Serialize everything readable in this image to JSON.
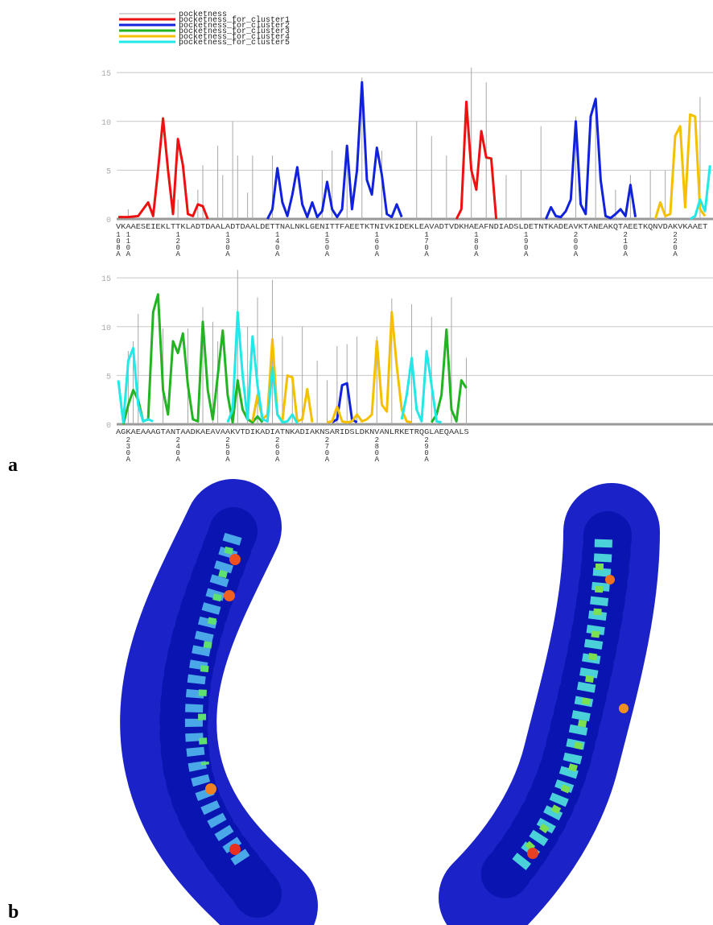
{
  "panels": {
    "a": "a",
    "b": "b"
  },
  "chart_data": [
    {
      "type": "line",
      "ylim": [
        0,
        16
      ],
      "yticks": [
        0,
        5,
        10,
        15
      ],
      "xlim": [
        108,
        227.6
      ],
      "grid": true,
      "xticks": [
        {
          "value": 108,
          "label": "108A"
        },
        {
          "value": 110,
          "label": "110A"
        },
        {
          "value": 120,
          "label": "120A"
        },
        {
          "value": 130,
          "label": "130A"
        },
        {
          "value": 140,
          "label": "140A"
        },
        {
          "value": 150,
          "label": "150A"
        },
        {
          "value": 160,
          "label": "160A"
        },
        {
          "value": 170,
          "label": "170A"
        },
        {
          "value": 180,
          "label": "180A"
        },
        {
          "value": 190,
          "label": "190A"
        },
        {
          "value": 200,
          "label": "200A"
        },
        {
          "value": 210,
          "label": "210A"
        },
        {
          "value": 220,
          "label": "220A"
        }
      ],
      "sequence": "VKAAESEIEKLTTKLADTDAALADTDAALDETTNALNKLGENITTFAEETKTNIVKIDEKLEAVADTVDKHAEAFNDIADSLDETNTKADEAVKTANEAKQTAEETKQNVDAKVKAAET",
      "series": [
        {
          "name": "pocketness",
          "color": "#a8a8a8",
          "kind": "bar",
          "x": [
            110,
            120,
            124,
            125,
            128,
            129,
            131,
            132,
            134,
            135,
            139,
            149,
            151,
            154,
            157,
            161,
            168,
            171,
            174,
            179,
            182,
            186,
            189,
            193,
            200,
            204,
            208,
            211,
            215,
            218,
            225
          ],
          "values": [
            1,
            2,
            3,
            5.5,
            7.5,
            4.5,
            10,
            6.5,
            2.7,
            6.5,
            6.5,
            5,
            7,
            7.5,
            14.5,
            7,
            10,
            8.5,
            6.5,
            15.5,
            14,
            4.5,
            5,
            9.5,
            10.5,
            12.5,
            3,
            4.5,
            5,
            5,
            12.5
          ]
        },
        {
          "name": "pocketness_for_cluster1",
          "color": "#ee1111",
          "kind": "line",
          "x": [
            108,
            110,
            112,
            114,
            115,
            116,
            117,
            118,
            119,
            120,
            121,
            122,
            123,
            124,
            125,
            126,
            null,
            176,
            177,
            178,
            179,
            180,
            181,
            182,
            183,
            184
          ],
          "values": [
            0.2,
            0.2,
            0.3,
            1.7,
            0.3,
            5,
            10.3,
            5,
            0.5,
            8.2,
            5.5,
            0.5,
            0.3,
            1.5,
            1.3,
            0,
            null,
            0,
            1,
            12,
            5,
            3,
            9,
            6.3,
            6.2,
            0
          ]
        },
        {
          "name": "pocketness_for_cluster2",
          "color": "#1122dd",
          "kind": "line",
          "x": [
            138,
            139,
            140,
            141,
            142,
            143,
            144,
            145,
            146,
            147,
            148,
            149,
            150,
            151,
            152,
            153,
            154,
            155,
            156,
            157,
            158,
            159,
            160,
            161,
            162,
            163,
            164,
            165,
            null,
            194,
            195,
            196,
            197,
            198,
            199,
            200,
            201,
            202,
            203,
            204,
            205,
            206,
            207,
            208,
            209,
            210,
            211,
            212
          ],
          "values": [
            0,
            1,
            5.2,
            1.7,
            0.3,
            2.5,
            5.3,
            1.5,
            0.2,
            1.7,
            0.2,
            0.8,
            3.8,
            1,
            0.2,
            1,
            7.5,
            1,
            5,
            14,
            4,
            2.5,
            7.3,
            4.5,
            0.5,
            0.2,
            1.5,
            0.2,
            null,
            0,
            1.2,
            0.3,
            0.2,
            0.8,
            2,
            10,
            1.5,
            0.5,
            10.5,
            12.3,
            4,
            0.3,
            0.1,
            0.5,
            1,
            0.3,
            3.5,
            0.2
          ]
        },
        {
          "name": "pocketness_for_cluster3",
          "color": "#22b422",
          "kind": "line",
          "x": [],
          "values": []
        },
        {
          "name": "pocketness_for_cluster4",
          "color": "#f5c000",
          "kind": "line",
          "x": [
            216,
            217,
            218,
            219,
            220,
            221,
            222,
            223,
            224,
            225,
            226
          ],
          "values": [
            0,
            1.7,
            0.3,
            0.5,
            8.5,
            9.5,
            1.2,
            10.7,
            10.5,
            1,
            0.3
          ]
        },
        {
          "name": "pocketness_for_cluster5",
          "color": "#22e8e8",
          "kind": "line",
          "x": [
            223,
            224,
            225,
            226,
            227
          ],
          "values": [
            0,
            0.3,
            2,
            0.8,
            5.5
          ]
        }
      ]
    },
    {
      "type": "line",
      "ylim": [
        0,
        16
      ],
      "yticks": [
        0,
        5,
        10,
        15
      ],
      "xlim": [
        228,
        347.6
      ],
      "grid": true,
      "xticks": [
        {
          "value": 230,
          "label": "230A"
        },
        {
          "value": 240,
          "label": "240A"
        },
        {
          "value": 250,
          "label": "250A"
        },
        {
          "value": 260,
          "label": "260A"
        },
        {
          "value": 270,
          "label": "270A"
        },
        {
          "value": 280,
          "label": "280A"
        },
        {
          "value": 290,
          "label": "290A"
        }
      ],
      "sequence": "AGKAEAAAGTANTAADKAEAVAAKVTDIKADIATNKADIAKNSARIDSLDKNVANLRKETRQGLAEQAALS",
      "series": [
        {
          "name": "pocketness",
          "color": "#a8a8a8",
          "kind": "bar",
          "x": [
            230,
            231,
            232,
            237,
            242,
            245,
            247,
            248,
            252,
            254,
            256,
            259,
            261,
            263,
            265,
            268,
            270,
            272,
            274,
            276,
            280,
            283,
            287,
            291,
            295,
            298
          ],
          "values": [
            7.5,
            8.5,
            11.3,
            9.8,
            9.8,
            12,
            10.5,
            8.5,
            15.8,
            10,
            13,
            14.8,
            9,
            5,
            10,
            6.5,
            4.5,
            8,
            8.2,
            9,
            9,
            12.9,
            12.3,
            11,
            13,
            6.8
          ]
        },
        {
          "name": "pocketness_for_cluster2",
          "color": "#1122dd",
          "kind": "line",
          "x": [
            271,
            272,
            273,
            274,
            275,
            276
          ],
          "values": [
            0.2,
            0.5,
            4,
            4.2,
            0.5,
            0.2
          ]
        },
        {
          "name": "pocketness_for_cluster3",
          "color": "#22b422",
          "kind": "line",
          "x": [
            229,
            230,
            231,
            232,
            233,
            234,
            235,
            236,
            237,
            238,
            239,
            240,
            241,
            242,
            243,
            244,
            245,
            246,
            247,
            248,
            249,
            250,
            251,
            252,
            253,
            254,
            255,
            256,
            257,
            null,
            291,
            292,
            293,
            294,
            295,
            296,
            297,
            298
          ],
          "values": [
            0,
            2,
            3.5,
            2.5,
            0.3,
            0.5,
            11.5,
            13.3,
            3.5,
            1,
            8.5,
            7.3,
            9.3,
            4,
            0.5,
            0.3,
            10.5,
            3.5,
            0.5,
            5,
            9.6,
            3,
            0.2,
            4.5,
            1.5,
            0.5,
            0.2,
            0.8,
            0.2,
            null,
            0.2,
            1,
            3,
            9.7,
            1.5,
            0.3,
            4.5,
            3.7
          ]
        },
        {
          "name": "pocketness_for_cluster4",
          "color": "#f5c000",
          "kind": "line",
          "x": [
            255,
            256,
            257,
            258,
            259,
            260,
            261,
            262,
            263,
            264,
            265,
            266,
            267,
            null,
            270,
            271,
            272,
            273,
            274,
            275,
            276,
            277,
            278,
            279,
            280,
            281,
            282,
            283,
            284,
            285,
            286,
            287
          ],
          "values": [
            0.3,
            3,
            0.5,
            1,
            8.7,
            1,
            0.3,
            5,
            4.8,
            0.3,
            0.5,
            3.6,
            0.2,
            null,
            0.2,
            0.3,
            1.8,
            0.3,
            0.2,
            0.3,
            1,
            0.3,
            0.5,
            1,
            8.5,
            2,
            1.3,
            11.5,
            6,
            1.5,
            0.3,
            0.2
          ]
        },
        {
          "name": "pocketness_for_cluster5",
          "color": "#22e8e8",
          "kind": "line",
          "x": [
            228,
            229,
            230,
            231,
            232,
            233,
            234,
            235,
            null,
            250,
            251,
            252,
            253,
            254,
            255,
            256,
            257,
            258,
            259,
            260,
            261,
            262,
            263,
            264,
            null,
            285,
            286,
            287,
            288,
            289,
            290,
            291,
            292,
            293
          ],
          "values": [
            4.5,
            0.2,
            6.5,
            7.8,
            2,
            0.3,
            0.5,
            0.3,
            null,
            0.2,
            1.5,
            11.5,
            5,
            0.5,
            9,
            4,
            0.5,
            0.3,
            5.8,
            1,
            0.2,
            0.3,
            1,
            0.1,
            null,
            0.5,
            3,
            6.8,
            1.5,
            0.3,
            7.5,
            4,
            0.3,
            0.2
          ]
        }
      ]
    }
  ]
}
